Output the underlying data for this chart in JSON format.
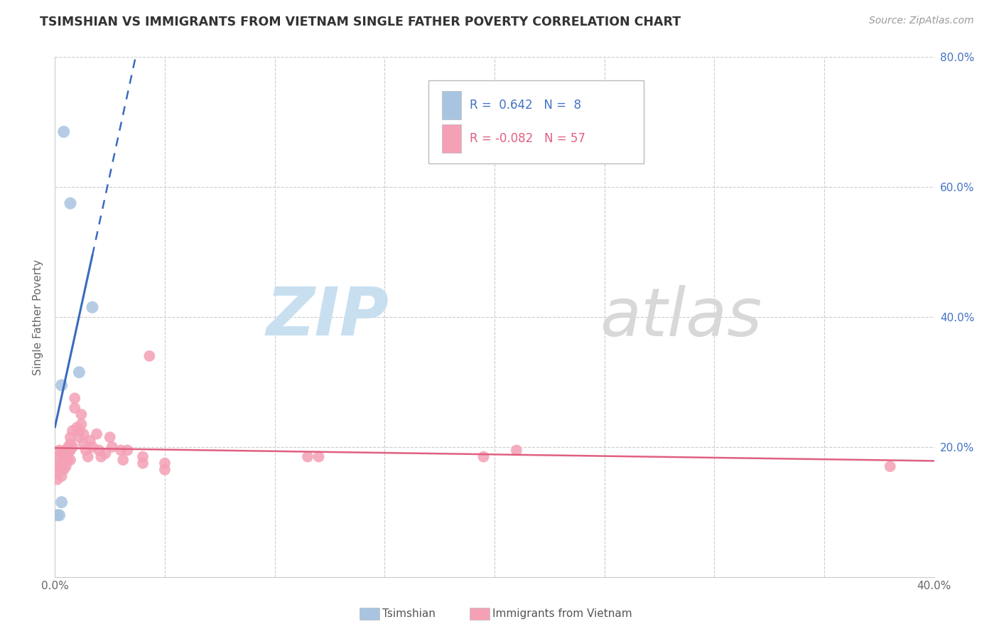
{
  "title": "TSIMSHIAN VS IMMIGRANTS FROM VIETNAM SINGLE FATHER POVERTY CORRELATION CHART",
  "source": "Source: ZipAtlas.com",
  "ylabel": "Single Father Poverty",
  "xlim": [
    0,
    0.4
  ],
  "ylim": [
    0,
    0.8
  ],
  "r_tsimshian": 0.642,
  "n_tsimshian": 8,
  "r_vietnam": -0.082,
  "n_vietnam": 57,
  "tsimshian_color": "#a8c4e0",
  "vietnam_color": "#f4a0b5",
  "tsimshian_line_color": "#3a6bbf",
  "vietnam_line_color": "#e06080",
  "background_color": "#ffffff",
  "grid_color": "#cccccc",
  "watermark_zip": "ZIP",
  "watermark_atlas": "atlas",
  "tsimshian_x": [
    0.004,
    0.007,
    0.017,
    0.011,
    0.003,
    0.003,
    0.002,
    0.001
  ],
  "tsimshian_y": [
    0.685,
    0.575,
    0.415,
    0.315,
    0.295,
    0.115,
    0.095,
    0.095
  ],
  "vietnam_x": [
    0.001,
    0.001,
    0.001,
    0.002,
    0.002,
    0.002,
    0.003,
    0.003,
    0.003,
    0.003,
    0.004,
    0.004,
    0.004,
    0.005,
    0.005,
    0.005,
    0.006,
    0.006,
    0.006,
    0.007,
    0.007,
    0.007,
    0.007,
    0.008,
    0.008,
    0.009,
    0.009,
    0.01,
    0.011,
    0.011,
    0.012,
    0.012,
    0.013,
    0.013,
    0.014,
    0.015,
    0.016,
    0.017,
    0.019,
    0.02,
    0.021,
    0.023,
    0.025,
    0.026,
    0.03,
    0.031,
    0.033,
    0.04,
    0.04,
    0.043,
    0.05,
    0.05,
    0.115,
    0.12,
    0.195,
    0.21,
    0.38
  ],
  "vietnam_y": [
    0.175,
    0.16,
    0.15,
    0.195,
    0.185,
    0.17,
    0.19,
    0.175,
    0.165,
    0.155,
    0.185,
    0.175,
    0.165,
    0.195,
    0.185,
    0.17,
    0.2,
    0.19,
    0.18,
    0.215,
    0.205,
    0.195,
    0.18,
    0.225,
    0.2,
    0.275,
    0.26,
    0.23,
    0.225,
    0.215,
    0.25,
    0.235,
    0.22,
    0.205,
    0.195,
    0.185,
    0.21,
    0.2,
    0.22,
    0.195,
    0.185,
    0.19,
    0.215,
    0.2,
    0.195,
    0.18,
    0.195,
    0.185,
    0.175,
    0.34,
    0.175,
    0.165,
    0.185,
    0.185,
    0.185,
    0.195,
    0.17
  ]
}
